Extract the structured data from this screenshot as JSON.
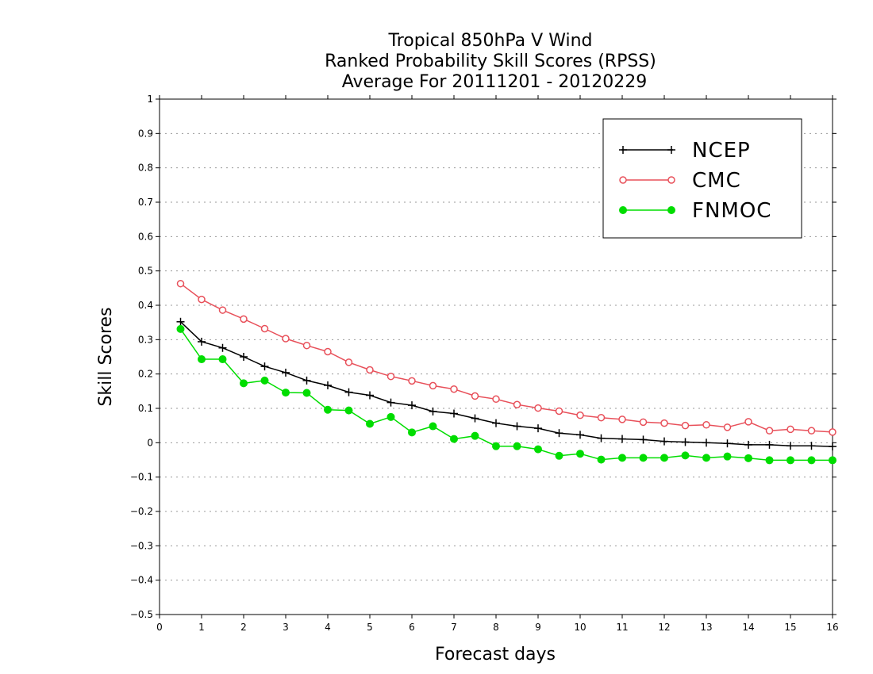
{
  "chart_data": {
    "type": "line",
    "title_lines": [
      "Tropical 850hPa V Wind",
      "Ranked Probability Skill Scores (RPSS)",
      "Average For 20111201 - 20120229"
    ],
    "xlabel": "Forecast days",
    "ylabel": "Skill Scores",
    "xlim": [
      0,
      16
    ],
    "ylim": [
      -0.5,
      1
    ],
    "x_ticks": [
      0,
      1,
      2,
      3,
      4,
      5,
      6,
      7,
      8,
      9,
      10,
      11,
      12,
      13,
      14,
      15,
      16
    ],
    "y_ticks": [
      -0.5,
      -0.4,
      -0.3,
      -0.2,
      -0.1,
      0,
      0.1,
      0.2,
      0.3,
      0.4,
      0.5,
      0.6,
      0.7,
      0.8,
      0.9,
      1
    ],
    "y_tick_labels": [
      "−0.5",
      "−0.4",
      "−0.3",
      "−0.2",
      "−0.1",
      "0",
      "0.1",
      "0.2",
      "0.3",
      "0.4",
      "0.5",
      "0.6",
      "0.7",
      "0.8",
      "0.9",
      "1"
    ],
    "grid": "horizontal-dotted",
    "legend_position": "top-right",
    "x": [
      0.5,
      1,
      1.5,
      2,
      2.5,
      3,
      3.5,
      4,
      4.5,
      5,
      5.5,
      6,
      6.5,
      7,
      7.5,
      8,
      8.5,
      9,
      9.5,
      10,
      10.5,
      11,
      11.5,
      12,
      12.5,
      13,
      13.5,
      14,
      14.5,
      15,
      15.5,
      16
    ],
    "series": [
      {
        "name": "NCEP",
        "color": "#000000",
        "marker": "plus",
        "values": [
          0.352,
          0.294,
          0.276,
          0.25,
          0.222,
          0.204,
          0.181,
          0.167,
          0.147,
          0.138,
          0.117,
          0.109,
          0.091,
          0.085,
          0.071,
          0.057,
          0.048,
          0.042,
          0.028,
          0.023,
          0.013,
          0.011,
          0.009,
          0.004,
          0.002,
          0.0,
          -0.002,
          -0.006,
          -0.006,
          -0.009,
          -0.009,
          -0.011
        ]
      },
      {
        "name": "CMC",
        "color": "#e8505a",
        "marker": "open-circle",
        "values": [
          0.463,
          0.417,
          0.386,
          0.36,
          0.332,
          0.303,
          0.283,
          0.265,
          0.234,
          0.212,
          0.193,
          0.18,
          0.166,
          0.156,
          0.136,
          0.127,
          0.111,
          0.101,
          0.092,
          0.08,
          0.073,
          0.068,
          0.06,
          0.057,
          0.05,
          0.052,
          0.045,
          0.061,
          0.035,
          0.039,
          0.035,
          0.031
        ]
      },
      {
        "name": "FNMOC",
        "color": "#00dd00",
        "marker": "filled-circle",
        "values": [
          0.331,
          0.243,
          0.243,
          0.173,
          0.181,
          0.146,
          0.145,
          0.096,
          0.094,
          0.055,
          0.075,
          0.03,
          0.048,
          0.011,
          0.02,
          -0.01,
          -0.01,
          -0.019,
          -0.038,
          -0.032,
          -0.049,
          -0.044,
          -0.044,
          -0.044,
          -0.037,
          -0.044,
          -0.04,
          -0.045,
          -0.051,
          -0.051,
          -0.051,
          -0.051
        ]
      }
    ]
  }
}
